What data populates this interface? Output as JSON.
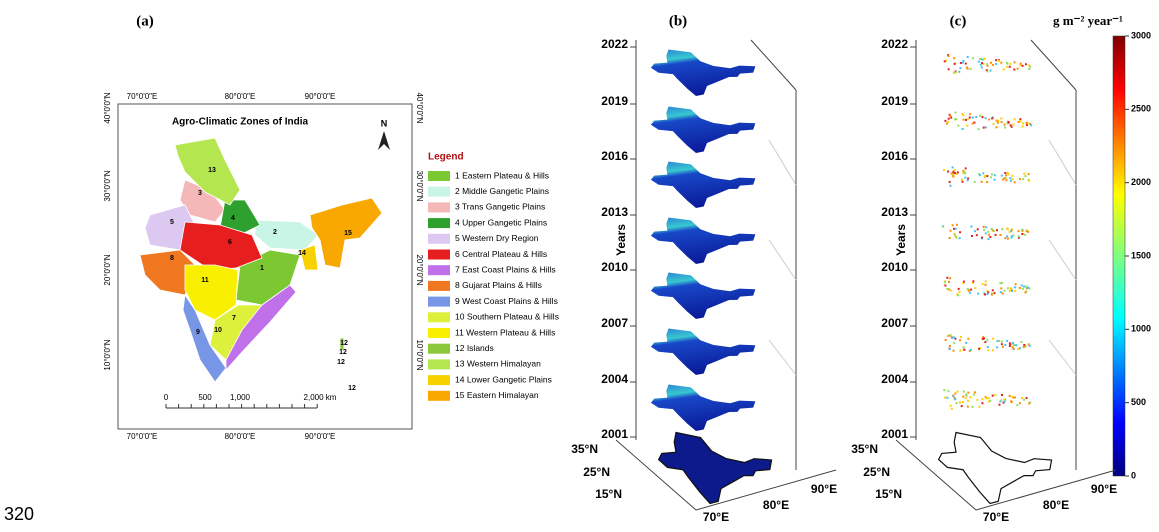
{
  "page_number": "320",
  "panel_a": {
    "label": "(a)",
    "title": "Agro-Climatic Zones of India",
    "north": "N",
    "lon_labels": [
      "70°0'0\"E",
      "80°0'0\"E",
      "90°0'0\"E"
    ],
    "lat_labels": [
      "40°0'0\"N",
      "30°0'0\"N",
      "20°0'0\"N",
      "10°0'0\"N"
    ],
    "scale_labels": [
      "0",
      "500",
      "1,000",
      "2,000 km"
    ],
    "legend_title": "Legend",
    "zones": [
      {
        "name": "1 Eastern Plateau & Hills",
        "color": "#7cc832"
      },
      {
        "name": "2 Middle Gangetic Plains",
        "color": "#c8f5e6"
      },
      {
        "name": "3 Trans Gangetic Plains",
        "color": "#f5b8b8"
      },
      {
        "name": "4 Upper Gangetic Plains",
        "color": "#2ea02e"
      },
      {
        "name": "5 Western Dry Region",
        "color": "#dcc8f0"
      },
      {
        "name": "6 Central Plateau & Hills",
        "color": "#e61e1e"
      },
      {
        "name": "7 East Coast Plains & Hills",
        "color": "#c070e8"
      },
      {
        "name": "8 Gujarat Plains & Hills",
        "color": "#f07820"
      },
      {
        "name": "9 West Coast Plains & Hills",
        "color": "#7896e6"
      },
      {
        "name": "10 Southern Plateau & Hills",
        "color": "#dcf03c"
      },
      {
        "name": "11 Western Plateau & Hills",
        "color": "#f8f000"
      },
      {
        "name": "12 Islands",
        "color": "#8cc83c"
      },
      {
        "name": "13 Western Himalayan",
        "color": "#b4e650"
      },
      {
        "name": "14 Lower Gangetic Plains",
        "color": "#f8d200"
      },
      {
        "name": "15 Eastern Himalayan",
        "color": "#f8a800"
      }
    ],
    "map_labels": [
      "1",
      "2",
      "3",
      "4",
      "5",
      "6",
      "7",
      "8",
      "9",
      "10",
      "11",
      "12",
      "12",
      "12",
      "12",
      "13",
      "14",
      "15"
    ]
  },
  "panel_b": {
    "label": "(b)",
    "axis_label": "Years",
    "years": [
      2022,
      2019,
      2016,
      2013,
      2010,
      2007,
      2004,
      2001
    ],
    "lat_ticks": [
      "35°N",
      "25°N",
      "15°N"
    ],
    "lon_ticks": [
      "70°E",
      "80°E",
      "90°E"
    ]
  },
  "panel_c": {
    "label": "(c)",
    "axis_label": "Years",
    "years": [
      2022,
      2019,
      2016,
      2013,
      2010,
      2007,
      2004,
      2001
    ],
    "lat_ticks": [
      "35°N",
      "25°N",
      "15°N"
    ],
    "lon_ticks": [
      "70°E",
      "80°E",
      "90°E"
    ]
  },
  "colorbar": {
    "title": "g m⁻² year⁻¹",
    "range": [
      0,
      3000
    ],
    "ticks": [
      0,
      500,
      1000,
      1500,
      2000,
      2500,
      3000
    ]
  }
}
